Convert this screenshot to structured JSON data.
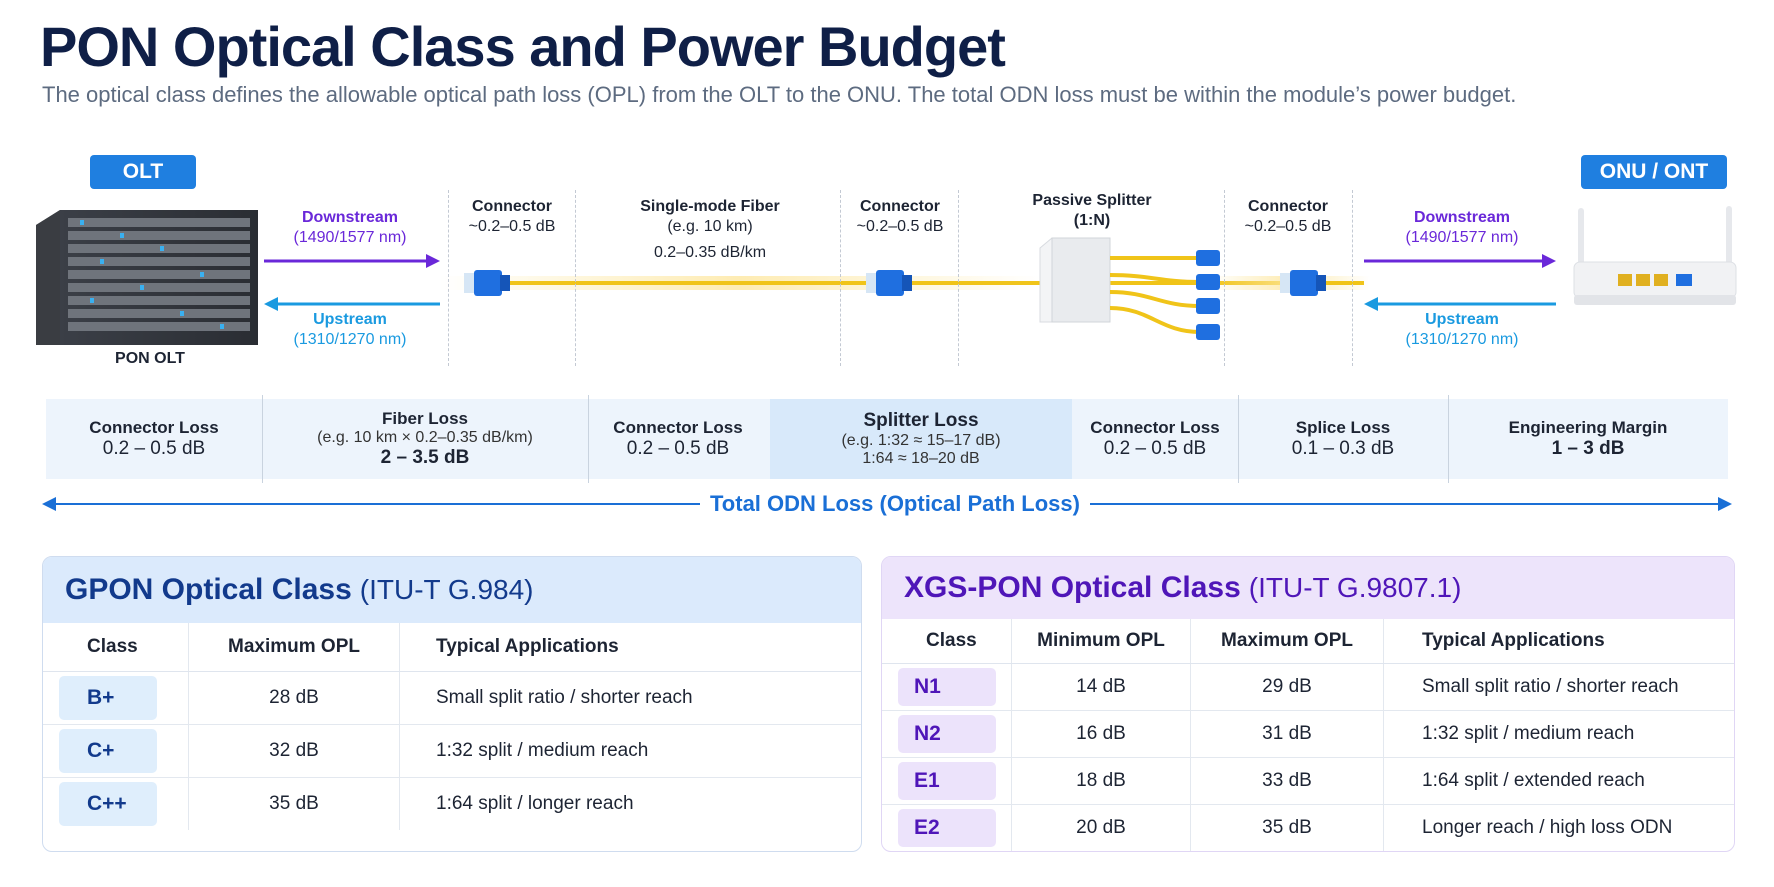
{
  "header": {
    "title": "PON Optical Class and Power Budget",
    "subtitle": "The optical class defines the allowable optical path loss (OPL) from the OLT to the ONU.  The total ODN loss must be within the module’s power budget."
  },
  "diagram": {
    "olt_badge": "OLT",
    "onu_badge": "ONU / ONT",
    "olt_caption": "PON OLT",
    "downstream_label": "Downstream",
    "downstream_wl": "(1490/1577 nm)",
    "upstream_label": "Upstream",
    "upstream_wl": "(1310/1270 nm)",
    "connector_label": "Connector",
    "connector_loss": "~0.2–0.5 dB",
    "fiber_label": "Single-mode Fiber",
    "fiber_example": "(e.g. 10 km)",
    "fiber_rate": "0.2–0.35 dB/km",
    "splitter_label": "Passive Splitter",
    "splitter_ratio": "(1:N)",
    "colors": {
      "downstream": "#6a28d9",
      "upstream": "#1a9ae0",
      "fiber": "#f0c419",
      "connector": "#1f6fe0"
    }
  },
  "loss_bar": {
    "cells": [
      {
        "title": "Connector Loss",
        "value": "0.2 – 0.5 dB"
      },
      {
        "title": "Fiber Loss",
        "sub": "(e.g. 10 km × 0.2–0.35 dB/km)",
        "value": "2 – 3.5 dB"
      },
      {
        "title": "Connector Loss",
        "value": "0.2 – 0.5 dB"
      },
      {
        "title": "Splitter Loss",
        "sub": "(e.g. 1:32 ≈ 15–17 dB)",
        "sub2": "1:64 ≈ 18–20 dB"
      },
      {
        "title": "Connector Loss",
        "value": "0.2 – 0.5 dB"
      },
      {
        "title": "Splice Loss",
        "value": "0.1 – 0.3 dB"
      },
      {
        "title": "Engineering Margin",
        "value": "1 – 3 dB"
      }
    ],
    "total_label": "Total ODN Loss (Optical Path Loss)"
  },
  "gpon": {
    "title": "GPON Optical Class",
    "standard": "(ITU-T G.984)",
    "headers": [
      "Class",
      "Maximum OPL",
      "Typical Applications"
    ],
    "rows": [
      {
        "class": "B+",
        "max": "28 dB",
        "app": "Small split ratio / shorter reach"
      },
      {
        "class": "C+",
        "max": "32 dB",
        "app": "1:32 split / medium reach"
      },
      {
        "class": "C++",
        "max": "35 dB",
        "app": "1:64 split / longer reach"
      }
    ]
  },
  "xgspon": {
    "title": "XGS-PON Optical Class",
    "standard": "(ITU-T G.9807.1)",
    "headers": [
      "Class",
      "Minimum OPL",
      "Maximum OPL",
      "Typical Applications"
    ],
    "rows": [
      {
        "class": "N1",
        "min": "14 dB",
        "max": "29 dB",
        "app": "Small split ratio / shorter reach"
      },
      {
        "class": "N2",
        "min": "16 dB",
        "max": "31 dB",
        "app": "1:32 split / medium reach"
      },
      {
        "class": "E1",
        "min": "18 dB",
        "max": "33 dB",
        "app": "1:64 split / extended reach"
      },
      {
        "class": "E2",
        "min": "20 dB",
        "max": "35 dB",
        "app": "Longer reach / high loss ODN"
      }
    ]
  }
}
